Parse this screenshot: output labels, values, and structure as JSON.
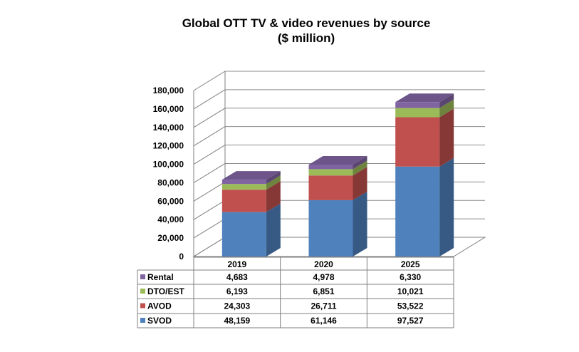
{
  "chart_data": {
    "type": "bar",
    "stacked": true,
    "three_d": true,
    "title": "Global OTT TV & video revenues by source",
    "subtitle": "($ million)",
    "categories": [
      "2019",
      "2020",
      "2025"
    ],
    "series": [
      {
        "name": "SVOD",
        "color": "#4f81bd",
        "values": [
          48159,
          61146,
          97527
        ]
      },
      {
        "name": "AVOD",
        "color": "#c0504d",
        "values": [
          24303,
          26711,
          53522
        ]
      },
      {
        "name": "DTO/EST",
        "color": "#9bbb59",
        "values": [
          6193,
          6851,
          10021
        ]
      },
      {
        "name": "Rental",
        "color": "#8064a2",
        "values": [
          4683,
          4978,
          6330
        ]
      }
    ],
    "value_labels": {
      "SVOD": [
        "48,159",
        "61,146",
        "97,527"
      ],
      "AVOD": [
        "24,303",
        "26,711",
        "53,522"
      ],
      "DTO/EST": [
        "6,193",
        "6,851",
        "10,021"
      ],
      "Rental": [
        "4,683",
        "4,978",
        "6,330"
      ]
    },
    "yticks": [
      "0",
      "20,000",
      "40,000",
      "60,000",
      "80,000",
      "100,000",
      "120,000",
      "140,000",
      "160,000",
      "180,000"
    ],
    "ylim": [
      0,
      180000
    ],
    "grid": true,
    "legend": "data-table",
    "table_row_order": [
      "Rental",
      "DTO/EST",
      "AVOD",
      "SVOD"
    ]
  }
}
